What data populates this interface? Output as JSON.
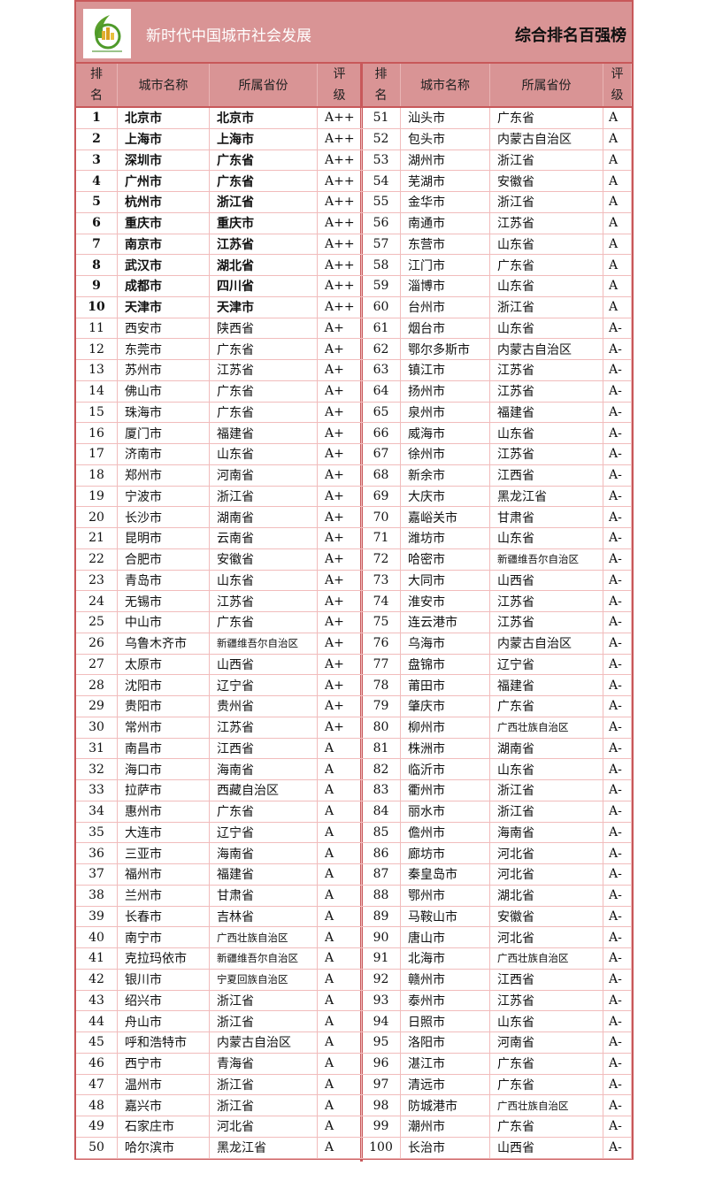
{
  "header": {
    "title": "新时代中国城市社会发展",
    "subtitle": "综合排名百强榜",
    "logo": "leaf-city-logo"
  },
  "columns": {
    "rank": [
      "排",
      "名"
    ],
    "city": "城市名称",
    "province": "所属省份",
    "grade": [
      "评",
      "级"
    ]
  },
  "colors": {
    "header_bg": "#d99495",
    "border": "#c8585a",
    "grid": "#f1bcbc"
  },
  "rows": [
    [
      "1",
      "北京市",
      "北京市",
      "A++"
    ],
    [
      "2",
      "上海市",
      "上海市",
      "A++"
    ],
    [
      "3",
      "深圳市",
      "广东省",
      "A++"
    ],
    [
      "4",
      "广州市",
      "广东省",
      "A++"
    ],
    [
      "5",
      "杭州市",
      "浙江省",
      "A++"
    ],
    [
      "6",
      "重庆市",
      "重庆市",
      "A++"
    ],
    [
      "7",
      "南京市",
      "江苏省",
      "A++"
    ],
    [
      "8",
      "武汉市",
      "湖北省",
      "A++"
    ],
    [
      "9",
      "成都市",
      "四川省",
      "A++"
    ],
    [
      "10",
      "天津市",
      "天津市",
      "A++"
    ],
    [
      "11",
      "西安市",
      "陕西省",
      "A+"
    ],
    [
      "12",
      "东莞市",
      "广东省",
      "A+"
    ],
    [
      "13",
      "苏州市",
      "江苏省",
      "A+"
    ],
    [
      "14",
      "佛山市",
      "广东省",
      "A+"
    ],
    [
      "15",
      "珠海市",
      "广东省",
      "A+"
    ],
    [
      "16",
      "厦门市",
      "福建省",
      "A+"
    ],
    [
      "17",
      "济南市",
      "山东省",
      "A+"
    ],
    [
      "18",
      "郑州市",
      "河南省",
      "A+"
    ],
    [
      "19",
      "宁波市",
      "浙江省",
      "A+"
    ],
    [
      "20",
      "长沙市",
      "湖南省",
      "A+"
    ],
    [
      "21",
      "昆明市",
      "云南省",
      "A+"
    ],
    [
      "22",
      "合肥市",
      "安徽省",
      "A+"
    ],
    [
      "23",
      "青岛市",
      "山东省",
      "A+"
    ],
    [
      "24",
      "无锡市",
      "江苏省",
      "A+"
    ],
    [
      "25",
      "中山市",
      "广东省",
      "A+"
    ],
    [
      "26",
      "乌鲁木齐市",
      "新疆维吾尔自治区",
      "A+"
    ],
    [
      "27",
      "太原市",
      "山西省",
      "A+"
    ],
    [
      "28",
      "沈阳市",
      "辽宁省",
      "A+"
    ],
    [
      "29",
      "贵阳市",
      "贵州省",
      "A+"
    ],
    [
      "30",
      "常州市",
      "江苏省",
      "A+"
    ],
    [
      "31",
      "南昌市",
      "江西省",
      "A"
    ],
    [
      "32",
      "海口市",
      "海南省",
      "A"
    ],
    [
      "33",
      "拉萨市",
      "西藏自治区",
      "A"
    ],
    [
      "34",
      "惠州市",
      "广东省",
      "A"
    ],
    [
      "35",
      "大连市",
      "辽宁省",
      "A"
    ],
    [
      "36",
      "三亚市",
      "海南省",
      "A"
    ],
    [
      "37",
      "福州市",
      "福建省",
      "A"
    ],
    [
      "38",
      "兰州市",
      "甘肃省",
      "A"
    ],
    [
      "39",
      "长春市",
      "吉林省",
      "A"
    ],
    [
      "40",
      "南宁市",
      "广西壮族自治区",
      "A"
    ],
    [
      "41",
      "克拉玛依市",
      "新疆维吾尔自治区",
      "A"
    ],
    [
      "42",
      "银川市",
      "宁夏回族自治区",
      "A"
    ],
    [
      "43",
      "绍兴市",
      "浙江省",
      "A"
    ],
    [
      "44",
      "舟山市",
      "浙江省",
      "A"
    ],
    [
      "45",
      "呼和浩特市",
      "内蒙古自治区",
      "A"
    ],
    [
      "46",
      "西宁市",
      "青海省",
      "A"
    ],
    [
      "47",
      "温州市",
      "浙江省",
      "A"
    ],
    [
      "48",
      "嘉兴市",
      "浙江省",
      "A"
    ],
    [
      "49",
      "石家庄市",
      "河北省",
      "A"
    ],
    [
      "50",
      "哈尔滨市",
      "黑龙江省",
      "A"
    ],
    [
      "51",
      "汕头市",
      "广东省",
      "A"
    ],
    [
      "52",
      "包头市",
      "内蒙古自治区",
      "A"
    ],
    [
      "53",
      "湖州市",
      "浙江省",
      "A"
    ],
    [
      "54",
      "芜湖市",
      "安徽省",
      "A"
    ],
    [
      "55",
      "金华市",
      "浙江省",
      "A"
    ],
    [
      "56",
      "南通市",
      "江苏省",
      "A"
    ],
    [
      "57",
      "东营市",
      "山东省",
      "A"
    ],
    [
      "58",
      "江门市",
      "广东省",
      "A"
    ],
    [
      "59",
      "淄博市",
      "山东省",
      "A"
    ],
    [
      "60",
      "台州市",
      "浙江省",
      "A"
    ],
    [
      "61",
      "烟台市",
      "山东省",
      "A-"
    ],
    [
      "62",
      "鄂尔多斯市",
      "内蒙古自治区",
      "A-"
    ],
    [
      "63",
      "镇江市",
      "江苏省",
      "A-"
    ],
    [
      "64",
      "扬州市",
      "江苏省",
      "A-"
    ],
    [
      "65",
      "泉州市",
      "福建省",
      "A-"
    ],
    [
      "66",
      "威海市",
      "山东省",
      "A-"
    ],
    [
      "67",
      "徐州市",
      "江苏省",
      "A-"
    ],
    [
      "68",
      "新余市",
      "江西省",
      "A-"
    ],
    [
      "69",
      "大庆市",
      "黑龙江省",
      "A-"
    ],
    [
      "70",
      "嘉峪关市",
      "甘肃省",
      "A-"
    ],
    [
      "71",
      "潍坊市",
      "山东省",
      "A-"
    ],
    [
      "72",
      "哈密市",
      "新疆维吾尔自治区",
      "A-"
    ],
    [
      "73",
      "大同市",
      "山西省",
      "A-"
    ],
    [
      "74",
      "淮安市",
      "江苏省",
      "A-"
    ],
    [
      "75",
      "连云港市",
      "江苏省",
      "A-"
    ],
    [
      "76",
      "乌海市",
      "内蒙古自治区",
      "A-"
    ],
    [
      "77",
      "盘锦市",
      "辽宁省",
      "A-"
    ],
    [
      "78",
      "莆田市",
      "福建省",
      "A-"
    ],
    [
      "79",
      "肇庆市",
      "广东省",
      "A-"
    ],
    [
      "80",
      "柳州市",
      "广西壮族自治区",
      "A-"
    ],
    [
      "81",
      "株洲市",
      "湖南省",
      "A-"
    ],
    [
      "82",
      "临沂市",
      "山东省",
      "A-"
    ],
    [
      "83",
      "衢州市",
      "浙江省",
      "A-"
    ],
    [
      "84",
      "丽水市",
      "浙江省",
      "A-"
    ],
    [
      "85",
      "儋州市",
      "海南省",
      "A-"
    ],
    [
      "86",
      "廊坊市",
      "河北省",
      "A-"
    ],
    [
      "87",
      "秦皇岛市",
      "河北省",
      "A-"
    ],
    [
      "88",
      "鄂州市",
      "湖北省",
      "A-"
    ],
    [
      "89",
      "马鞍山市",
      "安徽省",
      "A-"
    ],
    [
      "90",
      "唐山市",
      "河北省",
      "A-"
    ],
    [
      "91",
      "北海市",
      "广西壮族自治区",
      "A-"
    ],
    [
      "92",
      "赣州市",
      "江西省",
      "A-"
    ],
    [
      "93",
      "泰州市",
      "江苏省",
      "A-"
    ],
    [
      "94",
      "日照市",
      "山东省",
      "A-"
    ],
    [
      "95",
      "洛阳市",
      "河南省",
      "A-"
    ],
    [
      "96",
      "湛江市",
      "广东省",
      "A-"
    ],
    [
      "97",
      "清远市",
      "广东省",
      "A-"
    ],
    [
      "98",
      "防城港市",
      "广西壮族自治区",
      "A-"
    ],
    [
      "99",
      "潮州市",
      "广东省",
      "A-"
    ],
    [
      "100",
      "长治市",
      "山西省",
      "A-"
    ]
  ]
}
